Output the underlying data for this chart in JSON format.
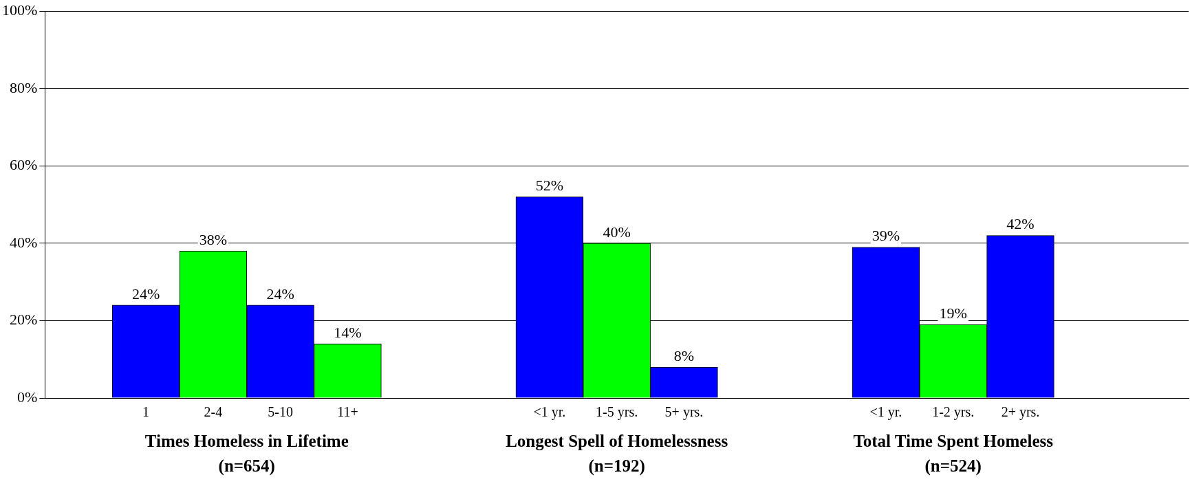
{
  "chart_data": {
    "type": "bar",
    "categories": [
      null,
      "1",
      "2-4",
      "5-10",
      "11+",
      null,
      null,
      "<1 yr.",
      "1-5 yrs.",
      "5+ yrs.",
      null,
      null,
      "<1 yr.",
      "1-2 yrs.",
      "2+ yrs.",
      null,
      null
    ],
    "values": [
      null,
      24,
      38,
      24,
      14,
      null,
      null,
      52,
      40,
      8,
      null,
      null,
      39,
      19,
      42,
      null,
      null
    ],
    "colors": [
      "#0000ff",
      "#0000ff",
      "#00ff00",
      "#0000ff",
      "#00ff00",
      "#0000ff",
      "#0000ff",
      "#0000ff",
      "#00ff00",
      "#0000ff",
      "#0000ff",
      "#0000ff",
      "#0000ff",
      "#00ff00",
      "#0000ff",
      "#0000ff",
      "#0000ff"
    ],
    "value_labels": [
      null,
      "24%",
      "38%",
      "24%",
      "14%",
      null,
      null,
      "52%",
      "40%",
      "8%",
      null,
      null,
      "39%",
      "19%",
      "42%",
      null,
      null
    ],
    "ylim": [
      0,
      100
    ],
    "yticks": [
      {
        "value": 0,
        "label": "0%"
      },
      {
        "value": 20,
        "label": "20%"
      },
      {
        "value": 40,
        "label": "40%"
      },
      {
        "value": 60,
        "label": "60%"
      },
      {
        "value": 80,
        "label": "80%"
      },
      {
        "value": 100,
        "label": "100%"
      }
    ],
    "grid": "y",
    "annotations": [
      "Times Homeless in Lifetime\n(n=654)",
      "Longest Spell of Homelessness\n(n=192)",
      "Total Time Spent Homeless\n(n=524)"
    ]
  }
}
